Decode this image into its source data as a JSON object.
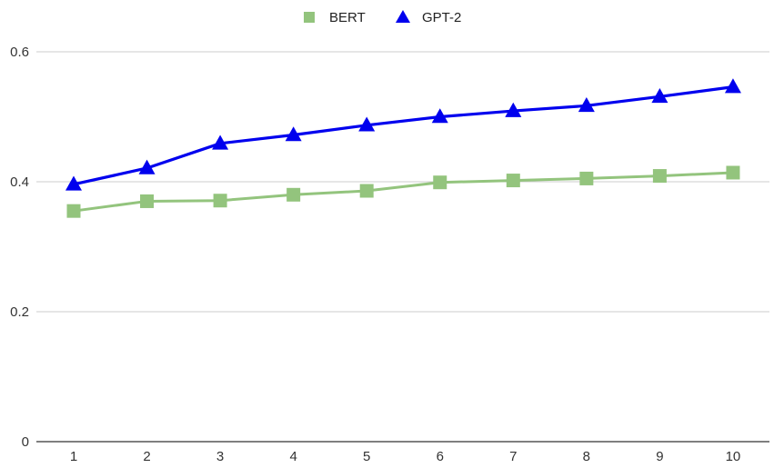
{
  "chart_data": {
    "type": "line",
    "title": "",
    "xlabel": "",
    "ylabel": "",
    "categories": [
      "1",
      "2",
      "3",
      "4",
      "5",
      "6",
      "7",
      "8",
      "9",
      "10"
    ],
    "ylim": [
      0,
      0.6
    ],
    "yticks": [
      "0",
      "0.2",
      "0.4",
      "0.6"
    ],
    "grid": true,
    "legend_position": "top-center",
    "series": [
      {
        "name": "BERT",
        "color": "#93c47d",
        "marker": "square",
        "values": [
          0.355,
          0.37,
          0.371,
          0.38,
          0.386,
          0.399,
          0.402,
          0.405,
          0.409,
          0.414
        ]
      },
      {
        "name": "GPT-2",
        "color": "#0000ee",
        "marker": "triangle",
        "values": [
          0.396,
          0.421,
          0.459,
          0.472,
          0.487,
          0.5,
          0.509,
          0.517,
          0.531,
          0.546
        ]
      }
    ]
  }
}
